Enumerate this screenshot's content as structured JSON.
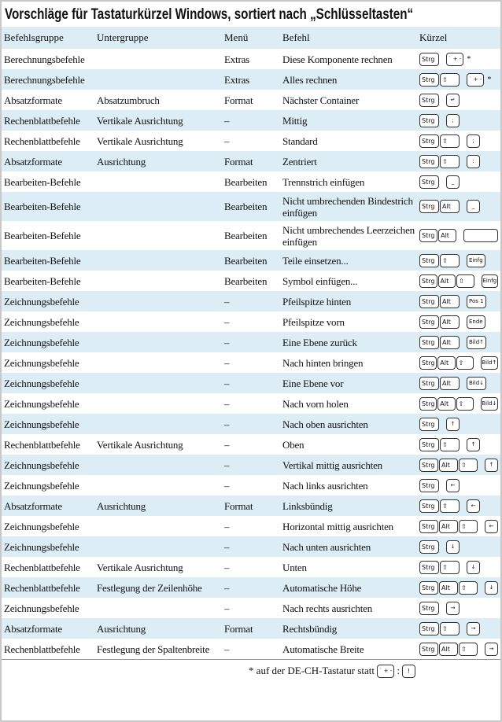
{
  "title": "Vorschläge für Tastaturkürzel Windows, sortiert nach „Schlüsseltasten“",
  "headers": [
    "Befehlsgruppe",
    "Untergruppe",
    "Menü",
    "Befehl",
    "Kürzel"
  ],
  "rows": [
    {
      "g": "Berechnungsbefehle",
      "u": "",
      "m": "Extras",
      "b": "Diese Komponente rechnen",
      "mods": [
        "Strg"
      ],
      "key": "˙ + -",
      "star": "*"
    },
    {
      "g": "Berechnungsbefehle",
      "u": "",
      "m": "Extras",
      "b": "Alles rechnen",
      "mods": [
        "Strg",
        "⇧"
      ],
      "key": "˙ + -",
      "star": "*"
    },
    {
      "g": "Absatzformate",
      "u": "Absatzumbruch",
      "m": "Format",
      "b": "Nächster Container",
      "mods": [
        "Strg"
      ],
      "key": "↵"
    },
    {
      "g": "Rechenblattbefehle",
      "u": "Vertikale Ausrichtung",
      "m": "–",
      "b": "Mittig",
      "mods": [
        "Strg"
      ],
      "key": ";"
    },
    {
      "g": "Rechenblattbefehle",
      "u": "Vertikale Ausrichtung",
      "m": "–",
      "b": "Standard",
      "mods": [
        "Strg",
        "⇧"
      ],
      "key": ";"
    },
    {
      "g": "Absatzformate",
      "u": "Ausrichtung",
      "m": "Format",
      "b": "Zentriert",
      "mods": [
        "Strg",
        "⇧"
      ],
      "key": ":"
    },
    {
      "g": "Bearbeiten-Befehle",
      "u": "",
      "m": "Bearbeiten",
      "b": "Trennstrich einfügen",
      "mods": [
        "Strg"
      ],
      "key": "_"
    },
    {
      "g": "Bearbeiten-Befehle",
      "u": "",
      "m": "Bearbeiten",
      "b": "Nicht umbrechenden Bindestrich einfügen",
      "mods": [
        "Strg",
        "Alt"
      ],
      "key": "_",
      "tall": true
    },
    {
      "g": "Bearbeiten-Befehle",
      "u": "",
      "m": "Bearbeiten",
      "b": "Nicht umbrechendes Leerzeichen einfügen",
      "mods": [
        "Strg",
        "Alt"
      ],
      "key": " ",
      "space": true,
      "tall": true
    },
    {
      "g": "Bearbeiten-Befehle",
      "u": "",
      "m": "Bearbeiten",
      "b": "Teile einsetzen...",
      "mods": [
        "Strg",
        "⇧"
      ],
      "key": "Einfg"
    },
    {
      "g": "Bearbeiten-Befehle",
      "u": "",
      "m": "Bearbeiten",
      "b": "Symbol einfügen...",
      "mods": [
        "Strg",
        "Alt",
        "⇧"
      ],
      "key": "Einfg"
    },
    {
      "g": "Zeichnungsbefehle",
      "u": "",
      "m": "–",
      "b": "Pfeilspitze hinten",
      "mods": [
        "Strg",
        "Alt"
      ],
      "key": "Pos 1"
    },
    {
      "g": "Zeichnungsbefehle",
      "u": "",
      "m": "–",
      "b": "Pfeilspitze vorn",
      "mods": [
        "Strg",
        "Alt"
      ],
      "key": "Ende"
    },
    {
      "g": "Zeichnungsbefehle",
      "u": "",
      "m": "–",
      "b": "Eine Ebene zurück",
      "mods": [
        "Strg",
        "Alt"
      ],
      "key": "Bild↑"
    },
    {
      "g": "Zeichnungsbefehle",
      "u": "",
      "m": "–",
      "b": "Nach hinten bringen",
      "mods": [
        "Strg",
        "Alt",
        "⇧"
      ],
      "key": "Bild↑"
    },
    {
      "g": "Zeichnungsbefehle",
      "u": "",
      "m": "–",
      "b": "Eine Ebene vor",
      "mods": [
        "Strg",
        "Alt"
      ],
      "key": "Bild↓"
    },
    {
      "g": "Zeichnungsbefehle",
      "u": "",
      "m": "–",
      "b": "Nach vorn holen",
      "mods": [
        "Strg",
        "Alt",
        "⇧"
      ],
      "key": "Bild↓"
    },
    {
      "g": "Zeichnungsbefehle",
      "u": "",
      "m": "–",
      "b": "Nach oben ausrichten",
      "mods": [
        "Strg"
      ],
      "key": "↑"
    },
    {
      "g": "Rechenblattbefehle",
      "u": "Vertikale Ausrichtung",
      "m": "–",
      "b": "Oben",
      "mods": [
        "Strg",
        "⇧"
      ],
      "key": "↑"
    },
    {
      "g": "Zeichnungsbefehle",
      "u": "",
      "m": "–",
      "b": "Vertikal mittig ausrichten",
      "mods": [
        "Strg",
        "Alt",
        "⇧"
      ],
      "key": "↑"
    },
    {
      "g": "Zeichnungsbefehle",
      "u": "",
      "m": "–",
      "b": "Nach links ausrichten",
      "mods": [
        "Strg"
      ],
      "key": "←"
    },
    {
      "g": "Absatzformate",
      "u": "Ausrichtung",
      "m": "Format",
      "b": "Linksbündig",
      "mods": [
        "Strg",
        "⇧"
      ],
      "key": "←"
    },
    {
      "g": "Zeichnungsbefehle",
      "u": "",
      "m": "–",
      "b": "Horizontal mittig ausrichten",
      "mods": [
        "Strg",
        "Alt",
        "⇧"
      ],
      "key": "←"
    },
    {
      "g": "Zeichnungsbefehle",
      "u": "",
      "m": "–",
      "b": "Nach unten ausrichten",
      "mods": [
        "Strg"
      ],
      "key": "↓"
    },
    {
      "g": "Rechenblattbefehle",
      "u": "Vertikale Ausrichtung",
      "m": "–",
      "b": "Unten",
      "mods": [
        "Strg",
        "⇧"
      ],
      "key": "↓"
    },
    {
      "g": "Rechenblattbefehle",
      "u": "Festlegung der Zeilenhöhe",
      "m": "–",
      "b": "Automatische Höhe",
      "mods": [
        "Strg",
        "Alt",
        "⇧"
      ],
      "key": "↓"
    },
    {
      "g": "Zeichnungsbefehle",
      "u": "",
      "m": "–",
      "b": "Nach rechts ausrichten",
      "mods": [
        "Strg"
      ],
      "key": "→"
    },
    {
      "g": "Absatzformate",
      "u": "Ausrichtung",
      "m": "Format",
      "b": "Rechtsbündig",
      "mods": [
        "Strg",
        "⇧"
      ],
      "key": "→"
    },
    {
      "g": "Rechenblattbefehle",
      "u": "Festlegung der Spaltenbreite",
      "m": "–",
      "b": "Automatische Breite",
      "mods": [
        "Strg",
        "Alt",
        "⇧"
      ],
      "key": "→"
    }
  ],
  "footnote": {
    "text": "* auf der DE-CH-Tastatur statt",
    "key1": "˙ + -",
    "colon": ":",
    "key2": "!"
  },
  "colors": {
    "stripe": "#dcedf5"
  }
}
